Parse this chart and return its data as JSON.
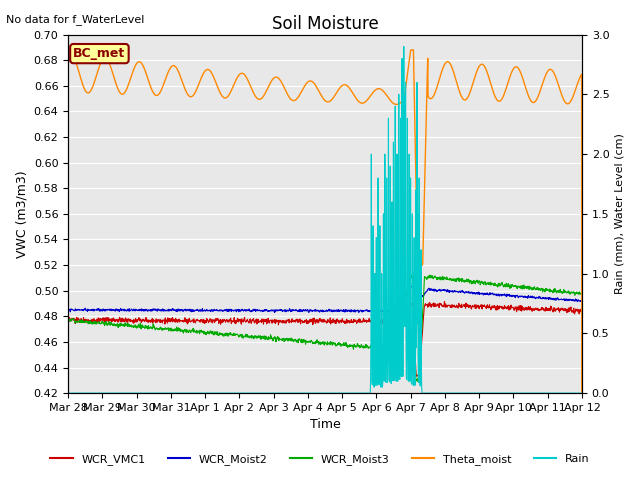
{
  "title": "Soil Moisture",
  "top_note": "No data for f_WaterLevel",
  "ylabel_left": "VWC (m3/m3)",
  "ylabel_right": "Rain (mm), Water Level (cm)",
  "xlabel": "Time",
  "ylim_left": [
    0.42,
    0.7
  ],
  "ylim_right": [
    0.0,
    3.0
  ],
  "yticks_left": [
    0.42,
    0.44,
    0.46,
    0.48,
    0.5,
    0.52,
    0.54,
    0.56,
    0.58,
    0.6,
    0.62,
    0.64,
    0.66,
    0.68,
    0.7
  ],
  "yticks_right": [
    0.0,
    0.5,
    1.0,
    1.5,
    2.0,
    2.5,
    3.0
  ],
  "xtick_labels": [
    "Mar 28",
    "Mar 29",
    "Mar 30",
    "Mar 31",
    "Apr 1",
    "Apr 2",
    "Apr 3",
    "Apr 4",
    "Apr 5",
    "Apr 6",
    "Apr 7",
    "Apr 8",
    "Apr 9",
    "Apr 10",
    "Apr 11",
    "Apr 12"
  ],
  "colors": {
    "WCR_VMC1": "#cc0000",
    "WCR_Moist2": "#0000cc",
    "WCR_Moist3": "#00aa00",
    "Theta_moist": "#ff8800",
    "Rain": "#00cccc",
    "background": "#e8e8e8"
  },
  "annotation_box": {
    "text": "BC_met",
    "facecolor": "#ffff99",
    "edgecolor": "#8b0000"
  }
}
